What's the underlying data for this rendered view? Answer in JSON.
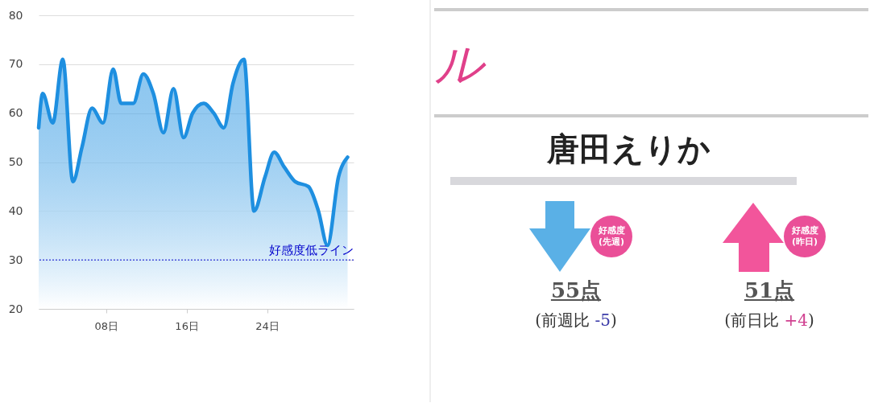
{
  "chart_data": [
    {
      "type": "area",
      "x": [
        1.3,
        1.7,
        2.7,
        3.7,
        4.7,
        5.6,
        6.6,
        7.7,
        8.7,
        9.5,
        10.7,
        11.7,
        12.7,
        13.7,
        14.7,
        15.7,
        16.6,
        17.7,
        18.7,
        19.7,
        20.6,
        21.7,
        22.7,
        23.8,
        24.7,
        25.7,
        26.8,
        28.1,
        29.1,
        30.0,
        31.1,
        32.0
      ],
      "series": [
        {
          "color": "#1e8fe0",
          "values": [
            57,
            64,
            58,
            71,
            46,
            53,
            61,
            58,
            69,
            62,
            62,
            68,
            64,
            56,
            65,
            55,
            60,
            62,
            60,
            57,
            66,
            71,
            40,
            47,
            52,
            49,
            46,
            45,
            40,
            33,
            47,
            51
          ]
        }
      ],
      "xlim": [
        1.3,
        32.6
      ],
      "xticks": [
        {
          "value": 8,
          "label": "08日"
        },
        {
          "value": 16,
          "label": "16日"
        },
        {
          "value": 24,
          "label": "24日"
        }
      ],
      "ylim": [
        20,
        80
      ],
      "yticks": [
        20,
        30,
        40,
        50,
        60,
        70,
        80
      ],
      "grid": "y",
      "marker": "none",
      "ref_lines": [
        {
          "axis": "y",
          "value": 30,
          "label": "好感度低ライン",
          "color": "#0000cc",
          "line_style": "dotted"
        }
      ]
    },
    {
      "type": "other",
      "title": "唐田えりか",
      "annotations": [
        "ル",
        "好感度\n(先週)",
        "55点",
        "(前週比 -5)",
        "好感度\n(昨日)",
        "51点",
        "(前日比 +4)"
      ]
    }
  ]
}
